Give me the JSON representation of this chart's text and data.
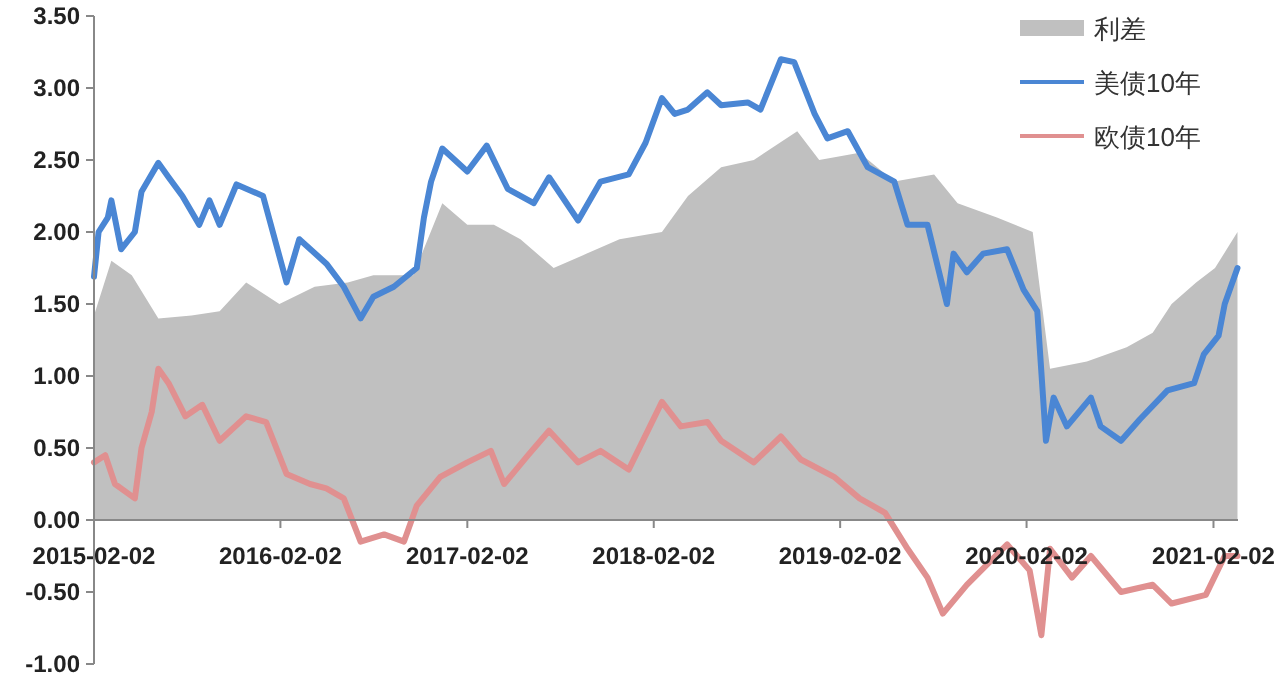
{
  "chart_data": {
    "type": "line",
    "legend": "top right",
    "xlim": [
      "2015-02-02",
      "2021-03-22"
    ],
    "ylim": [
      -1,
      3.5
    ],
    "xticks": [
      "2015-02-02",
      "2016-02-02",
      "2017-02-02",
      "2018-02-02",
      "2019-02-02",
      "2020-02-02",
      "2021-02-02"
    ],
    "yticks": [
      {
        "value": -1,
        "label": "-1.00"
      },
      {
        "value": -0.5,
        "label": "-0.50"
      },
      {
        "value": 0,
        "label": "0.00"
      },
      {
        "value": 0.5,
        "label": "0.50"
      },
      {
        "value": 1,
        "label": "1.00"
      },
      {
        "value": 1.5,
        "label": "1.50"
      },
      {
        "value": 2,
        "label": "2.00"
      },
      {
        "value": 2.5,
        "label": "2.50"
      },
      {
        "value": 3,
        "label": "3.00"
      },
      {
        "value": 3.5,
        "label": "3.50"
      }
    ],
    "series": [
      {
        "name": "利差",
        "type": "area",
        "color": "#c0c0c0",
        "x": [
          "2015-02-02",
          "2015-03-08",
          "2015-04-17",
          "2015-06-08",
          "2015-08-12",
          "2015-10-06",
          "2015-11-27",
          "2016-01-31",
          "2016-04-09",
          "2016-06-13",
          "2016-08-02",
          "2016-10-19",
          "2016-12-15",
          "2017-02-02",
          "2017-03-26",
          "2017-05-17",
          "2017-07-21",
          "2017-09-24",
          "2017-11-27",
          "2018-02-18",
          "2018-04-10",
          "2018-06-14",
          "2018-08-17",
          "2018-11-10",
          "2018-12-23",
          "2019-03-12",
          "2019-05-19",
          "2019-08-05",
          "2019-09-20",
          "2019-12-06",
          "2020-02-14",
          "2020-03-19",
          "2020-05-30",
          "2020-08-16",
          "2020-10-06",
          "2020-11-12",
          "2020-12-30",
          "2021-02-05",
          "2021-03-21"
        ],
        "values": [
          1.42,
          1.8,
          1.7,
          1.4,
          1.42,
          1.45,
          1.65,
          1.5,
          1.62,
          1.65,
          1.7,
          1.7,
          2.2,
          2.05,
          2.05,
          1.95,
          1.75,
          1.85,
          1.95,
          2.0,
          2.25,
          2.45,
          2.5,
          2.7,
          2.5,
          2.55,
          2.35,
          2.4,
          2.2,
          2.1,
          2.0,
          1.05,
          1.1,
          1.2,
          1.3,
          1.5,
          1.65,
          1.75,
          2.0
        ]
      },
      {
        "name": "美债10年",
        "color": "#4a86d4",
        "x": [
          "2015-02-02",
          "2015-02-11",
          "2015-03-01",
          "2015-03-08",
          "2015-03-27",
          "2015-04-23",
          "2015-05-06",
          "2015-06-08",
          "2015-06-28",
          "2015-07-25",
          "2015-08-27",
          "2015-09-16",
          "2015-10-06",
          "2015-11-08",
          "2015-12-30",
          "2016-02-14",
          "2016-03-10",
          "2016-05-02",
          "2016-06-05",
          "2016-07-08",
          "2016-08-02",
          "2016-09-11",
          "2016-10-26",
          "2016-11-09",
          "2016-11-23",
          "2016-12-15",
          "2017-02-02",
          "2017-03-12",
          "2017-04-22",
          "2017-06-12",
          "2017-07-12",
          "2017-09-07",
          "2017-10-21",
          "2017-12-15",
          "2018-01-17",
          "2018-02-18",
          "2018-03-15",
          "2018-04-10",
          "2018-05-18",
          "2018-06-14",
          "2018-08-05",
          "2018-08-30",
          "2018-10-09",
          "2018-11-04",
          "2018-12-14",
          "2019-01-08",
          "2019-02-17",
          "2019-03-28",
          "2019-05-19",
          "2019-06-14",
          "2019-07-23",
          "2019-08-30",
          "2019-09-12",
          "2019-10-08",
          "2019-11-09",
          "2019-12-26",
          "2020-01-27",
          "2020-02-23",
          "2020-03-11",
          "2020-03-26",
          "2020-04-21",
          "2020-06-07",
          "2020-06-26",
          "2020-08-05",
          "2020-09-11",
          "2020-11-04",
          "2020-12-26",
          "2021-01-14",
          "2021-02-12",
          "2021-02-24",
          "2021-03-21"
        ],
        "values": [
          1.69,
          2.0,
          2.1,
          2.22,
          1.88,
          2.0,
          2.28,
          2.48,
          2.38,
          2.25,
          2.05,
          2.22,
          2.05,
          2.33,
          2.25,
          1.65,
          1.95,
          1.78,
          1.62,
          1.4,
          1.55,
          1.62,
          1.75,
          2.1,
          2.35,
          2.58,
          2.42,
          2.6,
          2.3,
          2.2,
          2.38,
          2.08,
          2.35,
          2.4,
          2.62,
          2.93,
          2.82,
          2.85,
          2.97,
          2.88,
          2.9,
          2.85,
          3.2,
          3.18,
          2.82,
          2.65,
          2.7,
          2.45,
          2.35,
          2.05,
          2.05,
          1.5,
          1.85,
          1.72,
          1.85,
          1.88,
          1.6,
          1.45,
          0.55,
          0.85,
          0.65,
          0.85,
          0.65,
          0.55,
          0.7,
          0.9,
          0.95,
          1.15,
          1.28,
          1.5,
          1.75
        ]
      },
      {
        "name": "欧债10年",
        "color": "#e09090",
        "x": [
          "2015-02-02",
          "2015-02-24",
          "2015-03-15",
          "2015-04-23",
          "2015-05-06",
          "2015-05-26",
          "2015-06-08",
          "2015-06-28",
          "2015-07-31",
          "2015-09-02",
          "2015-10-06",
          "2015-11-27",
          "2016-01-05",
          "2016-02-14",
          "2016-03-31",
          "2016-05-02",
          "2016-06-05",
          "2016-07-08",
          "2016-08-23",
          "2016-10-01",
          "2016-10-26",
          "2016-12-11",
          "2017-02-02",
          "2017-03-20",
          "2017-04-15",
          "2017-06-01",
          "2017-07-12",
          "2017-09-07",
          "2017-10-21",
          "2017-12-15",
          "2018-02-18",
          "2018-03-27",
          "2018-05-18",
          "2018-06-14",
          "2018-08-17",
          "2018-10-09",
          "2018-11-17",
          "2019-01-21",
          "2019-03-12",
          "2019-05-01",
          "2019-06-14",
          "2019-07-23",
          "2019-08-22",
          "2019-10-08",
          "2019-12-26",
          "2020-02-08",
          "2020-03-02",
          "2020-03-19",
          "2020-05-01",
          "2020-06-07",
          "2020-08-05",
          "2020-10-06",
          "2020-11-12",
          "2021-01-18",
          "2021-02-24",
          "2021-03-21"
        ],
        "values": [
          0.4,
          0.45,
          0.25,
          0.15,
          0.5,
          0.75,
          1.05,
          0.95,
          0.72,
          0.8,
          0.55,
          0.72,
          0.68,
          0.32,
          0.25,
          0.22,
          0.15,
          -0.15,
          -0.1,
          -0.15,
          0.1,
          0.3,
          0.4,
          0.48,
          0.25,
          0.45,
          0.62,
          0.4,
          0.48,
          0.35,
          0.82,
          0.65,
          0.68,
          0.55,
          0.4,
          0.58,
          0.42,
          0.3,
          0.15,
          0.05,
          -0.2,
          -0.4,
          -0.65,
          -0.45,
          -0.17,
          -0.35,
          -0.8,
          -0.2,
          -0.4,
          -0.25,
          -0.5,
          -0.45,
          -0.58,
          -0.52,
          -0.25,
          -0.25
        ]
      }
    ]
  }
}
